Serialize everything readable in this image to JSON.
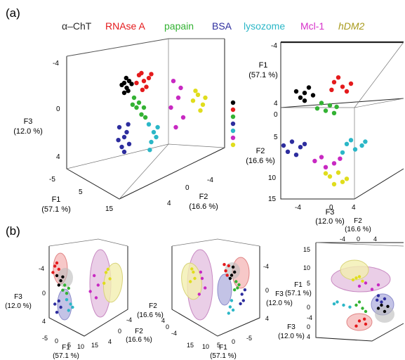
{
  "figure": {
    "panel_labels": [
      "(a)",
      "(b)"
    ],
    "legend": [
      {
        "label": "α–ChT",
        "color": "#2b2b2b"
      },
      {
        "label": "RNAse A",
        "color": "#e41a1c"
      },
      {
        "label": "papain",
        "color": "#33b233"
      },
      {
        "label": "BSA",
        "color": "#2d2d9e"
      },
      {
        "label": "lysozome",
        "color": "#2bb7c7"
      },
      {
        "label": "Mcl-1",
        "color": "#d631c9"
      },
      {
        "label": "hDM2",
        "color": "#a89a1c"
      }
    ],
    "dot_colors": [
      "#000000",
      "#e41a1c",
      "#33b233",
      "#2d2d9e",
      "#2bb7c7",
      "#c829c2",
      "#e0dd1c"
    ],
    "axis_labels": {
      "f1": [
        "F1",
        "(57.1 %)"
      ],
      "f2": [
        "F2",
        "(16.6 %)"
      ],
      "f3": [
        "F3",
        "(12.0 %)"
      ]
    }
  },
  "chart_data": [
    {
      "type": "scatter",
      "panel": "(a)",
      "view": "3D scatter, left view",
      "axes": {
        "F1": {
          "label": "F1 (57.1 %)",
          "ticks": [
            -5,
            5,
            15
          ]
        },
        "F2": {
          "label": "F2 (16.6 %)",
          "ticks": [
            -4,
            0,
            4
          ]
        },
        "F3": {
          "label": "F3 (12.0 %)",
          "ticks": [
            -4,
            0,
            4
          ]
        }
      },
      "series": [
        {
          "name": "α–ChT",
          "points": [
            [
              -4,
              -3.0
            ],
            [
              -3.5,
              -2.5
            ],
            [
              -3,
              -3.2
            ],
            [
              -4.5,
              -2.8
            ],
            [
              -3.2,
              -2.2
            ],
            [
              -2.5,
              -2.9
            ],
            [
              -4,
              -2.0
            ],
            [
              -3.6,
              -3.5
            ]
          ]
        },
        {
          "name": "RNAse A",
          "points": [
            [
              -1,
              -3.8
            ],
            [
              0,
              -3.2
            ],
            [
              -0.5,
              -4.0
            ],
            [
              1,
              -3.5
            ],
            [
              -1.5,
              -3.0
            ],
            [
              0.5,
              -2.6
            ],
            [
              1.5,
              -3.9
            ],
            [
              -0.3,
              -2.3
            ]
          ]
        },
        {
          "name": "papain",
          "points": [
            [
              -2,
              -1.5
            ],
            [
              -1,
              -1.0
            ],
            [
              0,
              -0.5
            ],
            [
              -1.5,
              -0.5
            ],
            [
              -0.5,
              0.2
            ],
            [
              -2.3,
              -0.8
            ],
            [
              0.3,
              0.5
            ]
          ]
        },
        {
          "name": "BSA",
          "points": [
            [
              -5,
              1.5
            ],
            [
              -4,
              2.5
            ],
            [
              -4.5,
              3.5
            ],
            [
              -3.5,
              2.0
            ],
            [
              -3,
              3.2
            ],
            [
              -5.2,
              2.8
            ],
            [
              -4,
              4.0
            ],
            [
              -3.2,
              1.2
            ]
          ]
        },
        {
          "name": "lysozome",
          "points": [
            [
              1,
              1.2
            ],
            [
              2,
              2.0
            ],
            [
              1.5,
              3.0
            ],
            [
              2.5,
              2.5
            ],
            [
              1.2,
              3.8
            ],
            [
              2.8,
              1.5
            ]
          ]
        },
        {
          "name": "Mcl-1",
          "points": [
            [
              6,
              -3.2
            ],
            [
              7,
              -1.5
            ],
            [
              5.5,
              -0.5
            ],
            [
              8,
              0.5
            ],
            [
              6.5,
              1.5
            ],
            [
              7.5,
              -2.5
            ]
          ]
        },
        {
          "name": "hDM2",
          "points": [
            [
              10,
              -1.2
            ],
            [
              11,
              -1.8
            ],
            [
              12,
              -0.8
            ],
            [
              11.5,
              -0.2
            ],
            [
              10.5,
              -2.2
            ],
            [
              12.5,
              -1.5
            ]
          ]
        }
      ]
    },
    {
      "type": "scatter",
      "panel": "(a)",
      "view": "3D scatter, right view",
      "axes": {
        "F1": {
          "label": "F1 (57.1 %)",
          "ticks": [
            -4,
            0,
            4
          ]
        },
        "F2": {
          "label": "F2 (16.6 %)",
          "ticks": [
            4,
            5,
            10,
            15
          ]
        },
        "F3": {
          "label": "F3 (12.0 %)",
          "ticks": [
            -4,
            0,
            4
          ]
        }
      },
      "series": [
        {
          "name": "α–ChT",
          "points": [
            [
              -3,
              -1.8
            ],
            [
              -2.5,
              -2.5
            ],
            [
              -3.5,
              -1.2
            ],
            [
              -2,
              -1.5
            ],
            [
              -3,
              -0.8
            ],
            [
              -4,
              -2.0
            ]
          ]
        },
        {
          "name": "RNAse A",
          "points": [
            [
              0.5,
              -3.2
            ],
            [
              1.5,
              -2.6
            ],
            [
              1,
              -3.8
            ],
            [
              2,
              -2.0
            ],
            [
              0.2,
              -2.2
            ],
            [
              2.5,
              -3.0
            ]
          ]
        },
        {
          "name": "papain",
          "points": [
            [
              -1,
              -0.5
            ],
            [
              0,
              -0.2
            ],
            [
              -0.5,
              0.5
            ],
            [
              0.5,
              0.8
            ],
            [
              -1.5,
              0.2
            ],
            [
              0.8,
              0
            ]
          ]
        },
        {
          "name": "BSA",
          "points": [
            [
              -4.5,
              4.5
            ],
            [
              -3.5,
              5.2
            ],
            [
              -5,
              5.8
            ],
            [
              -3,
              4.8
            ],
            [
              -4,
              6.2
            ],
            [
              -5.5,
              5.0
            ]
          ]
        },
        {
          "name": "lysozome",
          "points": [
            [
              2,
              4.8
            ],
            [
              3,
              5.5
            ],
            [
              2.5,
              4.3
            ],
            [
              3.8,
              5.0
            ],
            [
              1.5,
              5.9
            ],
            [
              4.2,
              4.5
            ]
          ]
        },
        {
          "name": "Mcl-1",
          "points": [
            [
              -1.8,
              7.0
            ],
            [
              -1,
              6.5
            ],
            [
              0.5,
              7.3
            ],
            [
              1.2,
              6.7
            ],
            [
              -0.5,
              7.8
            ]
          ]
        },
        {
          "name": "hDM2",
          "points": [
            [
              0,
              9.0
            ],
            [
              1,
              8.5
            ],
            [
              2,
              9.3
            ],
            [
              0.5,
              10.0
            ],
            [
              1.5,
              9.7
            ],
            [
              -0.5,
              8.6
            ]
          ]
        }
      ]
    },
    {
      "type": "scatter",
      "panel": "(b)",
      "view": "3D scatter with confidence ellipses, view 1",
      "axes": {
        "F1": {
          "label": "F1 (57.1 %)",
          "ticks": [
            -5,
            0,
            5,
            10,
            15
          ]
        },
        "F2": {
          "label": "F2 (16.6 %)",
          "ticks": [
            -4,
            0,
            4
          ]
        },
        "F3": {
          "label": "F3 (12.0 %)",
          "ticks": [
            -4,
            0,
            4
          ]
        }
      },
      "series": [
        {
          "name": "α–ChT",
          "points": [
            [
              -2.5,
              -2.0
            ],
            [
              -1.5,
              -1.2
            ],
            [
              -2,
              -0.5
            ],
            [
              -1,
              -1.8
            ]
          ]
        },
        {
          "name": "RNAse A",
          "points": [
            [
              -3,
              -3.5
            ],
            [
              -2,
              -3.0
            ],
            [
              -3.5,
              -2.5
            ],
            [
              -2.5,
              -4.0
            ]
          ]
        },
        {
          "name": "papain",
          "points": [
            [
              -0.5,
              -0.5
            ],
            [
              0.5,
              0
            ],
            [
              0,
              0.8
            ],
            [
              -1,
              0.3
            ]
          ]
        },
        {
          "name": "BSA",
          "points": [
            [
              -2,
              2.0
            ],
            [
              -1.5,
              3.0
            ],
            [
              -3,
              2.5
            ],
            [
              -2.5,
              3.8
            ]
          ]
        },
        {
          "name": "lysozome",
          "points": [
            [
              0,
              1.8
            ],
            [
              1,
              2.5
            ],
            [
              0.5,
              3.5
            ],
            [
              1.5,
              3.0
            ]
          ]
        },
        {
          "name": "Mcl-1",
          "points": [
            [
              7,
              -2.0
            ],
            [
              8,
              -0.5
            ],
            [
              6,
              0.5
            ],
            [
              7.5,
              1.5
            ]
          ]
        },
        {
          "name": "hDM2",
          "points": [
            [
              10,
              -2.5
            ],
            [
              11,
              -1.5
            ],
            [
              9.5,
              -0.8
            ],
            [
              10.5,
              -3.0
            ]
          ]
        }
      ]
    },
    {
      "type": "scatter",
      "panel": "(b)",
      "view": "3D scatter with confidence ellipses, view 2",
      "axes": {
        "F1": {
          "label": "F1 (57.1 %)",
          "ticks": [
            15,
            10,
            5,
            0,
            -5
          ]
        },
        "F2": {
          "label": "F2 (16.6 %)",
          "ticks": [
            -4,
            0,
            4
          ]
        },
        "F3": {
          "label": "F3 (12.0 %)",
          "ticks": [
            -4,
            0,
            4
          ]
        }
      },
      "series": [
        {
          "name": "α–ChT",
          "points": [
            [
              -1,
              -2.0
            ],
            [
              0,
              -1.5
            ],
            [
              -0.5,
              -2.8
            ],
            [
              0.5,
              -1.0
            ]
          ]
        },
        {
          "name": "RNAse A",
          "points": [
            [
              1,
              -3.0
            ],
            [
              2,
              -2.2
            ],
            [
              1.5,
              -1.5
            ],
            [
              2.5,
              -3.2
            ]
          ]
        },
        {
          "name": "papain",
          "points": [
            [
              -1.5,
              -0.5
            ],
            [
              -2,
              0.5
            ],
            [
              -1,
              0.8
            ],
            [
              -2.5,
              0
            ]
          ]
        },
        {
          "name": "BSA",
          "points": [
            [
              -3.5,
              1.5
            ],
            [
              -4,
              2.5
            ],
            [
              -3,
              3.0
            ],
            [
              -4.5,
              0.8
            ]
          ]
        },
        {
          "name": "lysozome",
          "points": [
            [
              0,
              2.5
            ],
            [
              0.5,
              3.5
            ],
            [
              1,
              4.5
            ],
            [
              -0.5,
              4.0
            ]
          ]
        },
        {
          "name": "Mcl-1",
          "points": [
            [
              10,
              -1.0
            ],
            [
              9,
              0.5
            ],
            [
              11,
              1.5
            ],
            [
              10.5,
              -2.0
            ]
          ]
        },
        {
          "name": "hDM2",
          "points": [
            [
              13,
              -2.0
            ],
            [
              12.5,
              -1.0
            ],
            [
              14,
              -0.5
            ],
            [
              13.5,
              -2.5
            ]
          ]
        }
      ]
    },
    {
      "type": "scatter",
      "panel": "(b)",
      "view": "3D scatter with confidence ellipses, view 3",
      "axes": {
        "F1": {
          "label": "F1 (57.1 %)",
          "ticks": [
            15,
            10,
            5,
            0,
            -5
          ]
        },
        "F2": {
          "label": "F2 (16.6 %)",
          "ticks": [
            -4,
            0,
            4
          ]
        },
        "F3": {
          "label": "F3 (12.0 %)",
          "ticks": [
            -4,
            0,
            4
          ]
        }
      },
      "series": [
        {
          "name": "α–ChT",
          "points": [
            [
              3.5,
              1.0
            ],
            [
              4,
              2.0
            ],
            [
              3,
              1.5
            ],
            [
              4.5,
              1.2
            ]
          ]
        },
        {
          "name": "RNAse A",
          "points": [
            [
              0,
              3.5
            ],
            [
              1,
              4.0
            ],
            [
              -0.5,
              4.3
            ],
            [
              0.8,
              3.2
            ]
          ]
        },
        {
          "name": "papain",
          "points": [
            [
              -0.5,
              1.0
            ],
            [
              0.5,
              1.5
            ],
            [
              0,
              0.5
            ],
            [
              1,
              2.0
            ]
          ]
        },
        {
          "name": "BSA",
          "points": [
            [
              3,
              -0.5
            ],
            [
              4,
              0
            ],
            [
              3.5,
              0.5
            ],
            [
              2.8,
              0.2
            ]
          ]
        },
        {
          "name": "lysozome",
          "points": [
            [
              -3.5,
              0.5
            ],
            [
              -2.5,
              1.0
            ],
            [
              -4,
              0.8
            ],
            [
              -1.5,
              1.3
            ]
          ]
        },
        {
          "name": "Mcl-1",
          "points": [
            [
              1,
              -2.5
            ],
            [
              2,
              -1.5
            ],
            [
              0,
              -2.0
            ],
            [
              3,
              -2.2
            ]
          ]
        },
        {
          "name": "hDM2",
          "points": [
            [
              -1,
              -3.0
            ],
            [
              0,
              -3.5
            ],
            [
              0.5,
              -2.8
            ],
            [
              -0.5,
              -3.3
            ]
          ]
        }
      ]
    }
  ]
}
